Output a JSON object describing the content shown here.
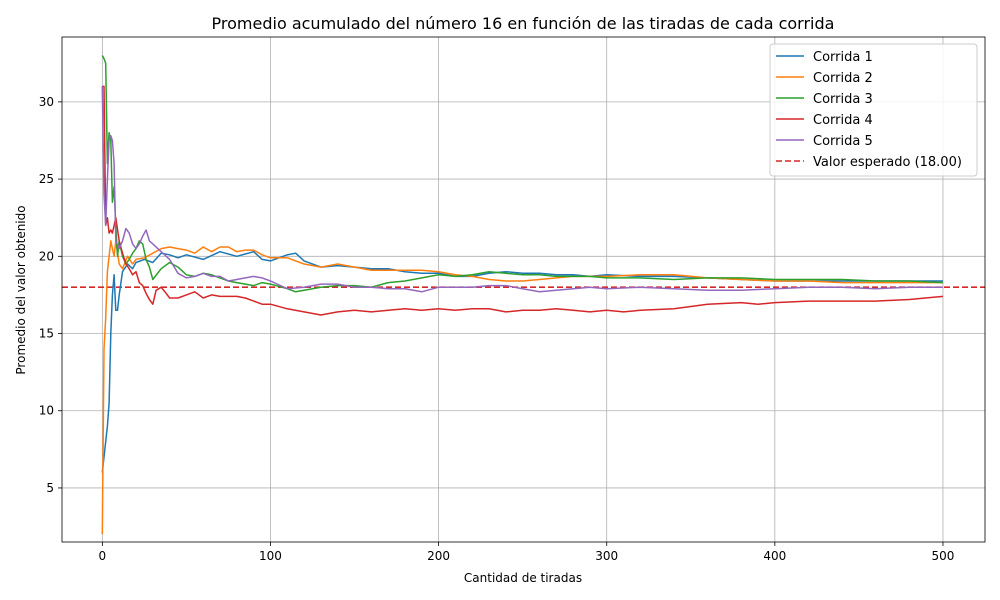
{
  "chart_data": {
    "type": "line",
    "title": "Promedio acumulado del número 16 en función de las tiradas de cada corrida",
    "xlabel": "Cantidad de tiradas",
    "ylabel": "Promedio del valor obtenido",
    "xlim": [
      -24,
      525
    ],
    "ylim": [
      1.5,
      34.2
    ],
    "xticks": [
      0,
      100,
      200,
      300,
      400,
      500
    ],
    "yticks": [
      5,
      10,
      15,
      20,
      25,
      30
    ],
    "grid": true,
    "legend_position": "top-right",
    "series": [
      {
        "name": "Corrida 1",
        "color": "#1f77b4",
        "points": [
          [
            0,
            6
          ],
          [
            1,
            7
          ],
          [
            2,
            8
          ],
          [
            3,
            9
          ],
          [
            4,
            10.5
          ],
          [
            5,
            15
          ],
          [
            6,
            17.5
          ],
          [
            7,
            18.8
          ],
          [
            8,
            16.5
          ],
          [
            9,
            16.5
          ],
          [
            10,
            17.5
          ],
          [
            12,
            19
          ],
          [
            15,
            19.5
          ],
          [
            18,
            19.2
          ],
          [
            20,
            19.6
          ],
          [
            25,
            19.8
          ],
          [
            30,
            19.6
          ],
          [
            35,
            20.2
          ],
          [
            40,
            20.1
          ],
          [
            45,
            19.9
          ],
          [
            50,
            20.1
          ],
          [
            60,
            19.8
          ],
          [
            70,
            20.3
          ],
          [
            80,
            20.0
          ],
          [
            90,
            20.3
          ],
          [
            95,
            19.8
          ],
          [
            100,
            19.7
          ],
          [
            110,
            20.1
          ],
          [
            115,
            20.2
          ],
          [
            120,
            19.7
          ],
          [
            130,
            19.3
          ],
          [
            140,
            19.4
          ],
          [
            150,
            19.3
          ],
          [
            160,
            19.2
          ],
          [
            170,
            19.2
          ],
          [
            180,
            19.0
          ],
          [
            190,
            18.9
          ],
          [
            200,
            18.9
          ],
          [
            210,
            18.7
          ],
          [
            220,
            18.7
          ],
          [
            230,
            18.9
          ],
          [
            240,
            19.0
          ],
          [
            250,
            18.9
          ],
          [
            260,
            18.9
          ],
          [
            270,
            18.8
          ],
          [
            280,
            18.8
          ],
          [
            290,
            18.7
          ],
          [
            300,
            18.8
          ],
          [
            320,
            18.7
          ],
          [
            340,
            18.7
          ],
          [
            360,
            18.6
          ],
          [
            380,
            18.5
          ],
          [
            400,
            18.4
          ],
          [
            420,
            18.4
          ],
          [
            440,
            18.4
          ],
          [
            460,
            18.4
          ],
          [
            480,
            18.4
          ],
          [
            500,
            18.4
          ]
        ]
      },
      {
        "name": "Corrida 2",
        "color": "#ff7f0e",
        "points": [
          [
            0,
            2
          ],
          [
            1,
            14
          ],
          [
            2,
            16
          ],
          [
            3,
            19
          ],
          [
            4,
            20
          ],
          [
            5,
            21
          ],
          [
            6,
            20.5
          ],
          [
            7,
            20
          ],
          [
            8,
            21
          ],
          [
            10,
            19.5
          ],
          [
            12,
            19.2
          ],
          [
            15,
            20
          ],
          [
            18,
            19.5
          ],
          [
            20,
            19.8
          ],
          [
            25,
            19.9
          ],
          [
            30,
            20.2
          ],
          [
            35,
            20.5
          ],
          [
            40,
            20.6
          ],
          [
            45,
            20.5
          ],
          [
            50,
            20.4
          ],
          [
            55,
            20.2
          ],
          [
            60,
            20.6
          ],
          [
            65,
            20.3
          ],
          [
            70,
            20.6
          ],
          [
            75,
            20.6
          ],
          [
            80,
            20.3
          ],
          [
            85,
            20.4
          ],
          [
            90,
            20.4
          ],
          [
            95,
            20.1
          ],
          [
            100,
            19.9
          ],
          [
            110,
            19.9
          ],
          [
            120,
            19.5
          ],
          [
            130,
            19.3
          ],
          [
            140,
            19.5
          ],
          [
            150,
            19.3
          ],
          [
            160,
            19.1
          ],
          [
            170,
            19.1
          ],
          [
            180,
            19.1
          ],
          [
            190,
            19.1
          ],
          [
            200,
            19.0
          ],
          [
            210,
            18.8
          ],
          [
            220,
            18.7
          ],
          [
            230,
            18.5
          ],
          [
            240,
            18.4
          ],
          [
            250,
            18.4
          ],
          [
            260,
            18.5
          ],
          [
            270,
            18.6
          ],
          [
            280,
            18.7
          ],
          [
            290,
            18.7
          ],
          [
            300,
            18.7
          ],
          [
            320,
            18.8
          ],
          [
            340,
            18.8
          ],
          [
            360,
            18.6
          ],
          [
            380,
            18.5
          ],
          [
            400,
            18.4
          ],
          [
            420,
            18.4
          ],
          [
            440,
            18.3
          ],
          [
            460,
            18.3
          ],
          [
            480,
            18.3
          ],
          [
            500,
            18.3
          ]
        ]
      },
      {
        "name": "Corrida 3",
        "color": "#2ca02c",
        "points": [
          [
            0,
            33
          ],
          [
            1,
            32.8
          ],
          [
            2,
            32.5
          ],
          [
            3,
            26
          ],
          [
            4,
            28
          ],
          [
            5,
            27.5
          ],
          [
            6,
            23.5
          ],
          [
            7,
            24.5
          ],
          [
            8,
            22
          ],
          [
            9,
            20
          ],
          [
            10,
            21
          ],
          [
            12,
            20
          ],
          [
            14,
            19.5
          ],
          [
            16,
            19.8
          ],
          [
            18,
            20.2
          ],
          [
            20,
            20.5
          ],
          [
            22,
            21
          ],
          [
            24,
            20.8
          ],
          [
            26,
            19.8
          ],
          [
            28,
            19.3
          ],
          [
            30,
            18.5
          ],
          [
            35,
            19.2
          ],
          [
            40,
            19.6
          ],
          [
            45,
            19.3
          ],
          [
            50,
            18.8
          ],
          [
            55,
            18.7
          ],
          [
            60,
            18.9
          ],
          [
            65,
            18.8
          ],
          [
            70,
            18.6
          ],
          [
            75,
            18.4
          ],
          [
            80,
            18.3
          ],
          [
            85,
            18.2
          ],
          [
            90,
            18.1
          ],
          [
            95,
            18.3
          ],
          [
            100,
            18.2
          ],
          [
            110,
            17.9
          ],
          [
            115,
            17.7
          ],
          [
            120,
            17.8
          ],
          [
            130,
            18.0
          ],
          [
            140,
            18.1
          ],
          [
            150,
            18.1
          ],
          [
            160,
            18.0
          ],
          [
            170,
            18.3
          ],
          [
            180,
            18.4
          ],
          [
            190,
            18.6
          ],
          [
            200,
            18.8
          ],
          [
            210,
            18.7
          ],
          [
            220,
            18.8
          ],
          [
            230,
            19.0
          ],
          [
            240,
            18.9
          ],
          [
            250,
            18.8
          ],
          [
            260,
            18.8
          ],
          [
            270,
            18.7
          ],
          [
            280,
            18.7
          ],
          [
            290,
            18.7
          ],
          [
            300,
            18.6
          ],
          [
            320,
            18.6
          ],
          [
            340,
            18.5
          ],
          [
            360,
            18.6
          ],
          [
            380,
            18.6
          ],
          [
            400,
            18.5
          ],
          [
            420,
            18.5
          ],
          [
            440,
            18.5
          ],
          [
            460,
            18.4
          ],
          [
            480,
            18.4
          ],
          [
            500,
            18.3
          ]
        ]
      },
      {
        "name": "Corrida 4",
        "color": "#d62728",
        "points": [
          [
            0,
            31
          ],
          [
            1,
            31
          ],
          [
            2,
            22
          ],
          [
            3,
            22.5
          ],
          [
            4,
            21.5
          ],
          [
            5,
            21.7
          ],
          [
            6,
            21.5
          ],
          [
            7,
            22
          ],
          [
            8,
            22.5
          ],
          [
            10,
            21
          ],
          [
            12,
            20.2
          ],
          [
            14,
            19.5
          ],
          [
            16,
            19.2
          ],
          [
            18,
            18.8
          ],
          [
            20,
            19.0
          ],
          [
            22,
            18.3
          ],
          [
            24,
            18.1
          ],
          [
            26,
            17.6
          ],
          [
            28,
            17.2
          ],
          [
            30,
            16.9
          ],
          [
            32,
            17.8
          ],
          [
            35,
            18.0
          ],
          [
            38,
            17.6
          ],
          [
            40,
            17.3
          ],
          [
            45,
            17.3
          ],
          [
            50,
            17.5
          ],
          [
            55,
            17.7
          ],
          [
            60,
            17.3
          ],
          [
            65,
            17.5
          ],
          [
            70,
            17.4
          ],
          [
            75,
            17.4
          ],
          [
            80,
            17.4
          ],
          [
            85,
            17.3
          ],
          [
            90,
            17.1
          ],
          [
            95,
            16.9
          ],
          [
            100,
            16.9
          ],
          [
            110,
            16.6
          ],
          [
            120,
            16.4
          ],
          [
            130,
            16.2
          ],
          [
            140,
            16.4
          ],
          [
            150,
            16.5
          ],
          [
            160,
            16.4
          ],
          [
            170,
            16.5
          ],
          [
            180,
            16.6
          ],
          [
            190,
            16.5
          ],
          [
            200,
            16.6
          ],
          [
            210,
            16.5
          ],
          [
            220,
            16.6
          ],
          [
            230,
            16.6
          ],
          [
            240,
            16.4
          ],
          [
            250,
            16.5
          ],
          [
            260,
            16.5
          ],
          [
            270,
            16.6
          ],
          [
            280,
            16.5
          ],
          [
            290,
            16.4
          ],
          [
            300,
            16.5
          ],
          [
            310,
            16.4
          ],
          [
            320,
            16.5
          ],
          [
            340,
            16.6
          ],
          [
            360,
            16.9
          ],
          [
            380,
            17.0
          ],
          [
            390,
            16.9
          ],
          [
            400,
            17.0
          ],
          [
            420,
            17.1
          ],
          [
            440,
            17.1
          ],
          [
            460,
            17.1
          ],
          [
            480,
            17.2
          ],
          [
            500,
            17.4
          ]
        ]
      },
      {
        "name": "Corrida 5",
        "color": "#9467bd",
        "points": [
          [
            0,
            31
          ],
          [
            1,
            24
          ],
          [
            2,
            22
          ],
          [
            3,
            25
          ],
          [
            4,
            27.5
          ],
          [
            5,
            27.8
          ],
          [
            6,
            27.5
          ],
          [
            7,
            26
          ],
          [
            8,
            21
          ],
          [
            10,
            20.5
          ],
          [
            12,
            21
          ],
          [
            14,
            21.8
          ],
          [
            16,
            21.5
          ],
          [
            18,
            20.8
          ],
          [
            20,
            20.5
          ],
          [
            22,
            20.8
          ],
          [
            24,
            21.3
          ],
          [
            26,
            21.7
          ],
          [
            28,
            21
          ],
          [
            30,
            20.8
          ],
          [
            35,
            20.3
          ],
          [
            40,
            19.8
          ],
          [
            45,
            18.9
          ],
          [
            50,
            18.6
          ],
          [
            55,
            18.7
          ],
          [
            60,
            18.9
          ],
          [
            65,
            18.7
          ],
          [
            70,
            18.7
          ],
          [
            75,
            18.4
          ],
          [
            80,
            18.5
          ],
          [
            85,
            18.6
          ],
          [
            90,
            18.7
          ],
          [
            95,
            18.6
          ],
          [
            100,
            18.4
          ],
          [
            110,
            17.9
          ],
          [
            120,
            18.0
          ],
          [
            130,
            18.2
          ],
          [
            140,
            18.2
          ],
          [
            150,
            18.0
          ],
          [
            160,
            18.0
          ],
          [
            170,
            17.9
          ],
          [
            180,
            17.9
          ],
          [
            190,
            17.7
          ],
          [
            200,
            18.0
          ],
          [
            210,
            18.0
          ],
          [
            220,
            18.0
          ],
          [
            230,
            18.1
          ],
          [
            240,
            18.1
          ],
          [
            250,
            17.9
          ],
          [
            260,
            17.7
          ],
          [
            270,
            17.8
          ],
          [
            280,
            17.9
          ],
          [
            290,
            18.0
          ],
          [
            300,
            17.9
          ],
          [
            320,
            18.0
          ],
          [
            340,
            17.9
          ],
          [
            360,
            17.8
          ],
          [
            380,
            17.8
          ],
          [
            400,
            17.9
          ],
          [
            420,
            18.0
          ],
          [
            440,
            18.0
          ],
          [
            460,
            17.9
          ],
          [
            480,
            18.0
          ],
          [
            500,
            18.0
          ]
        ]
      }
    ],
    "reference_line": {
      "name": "Valor esperado (18.00)",
      "y": 18.0,
      "color": "#d62728",
      "style": "dashed"
    }
  }
}
